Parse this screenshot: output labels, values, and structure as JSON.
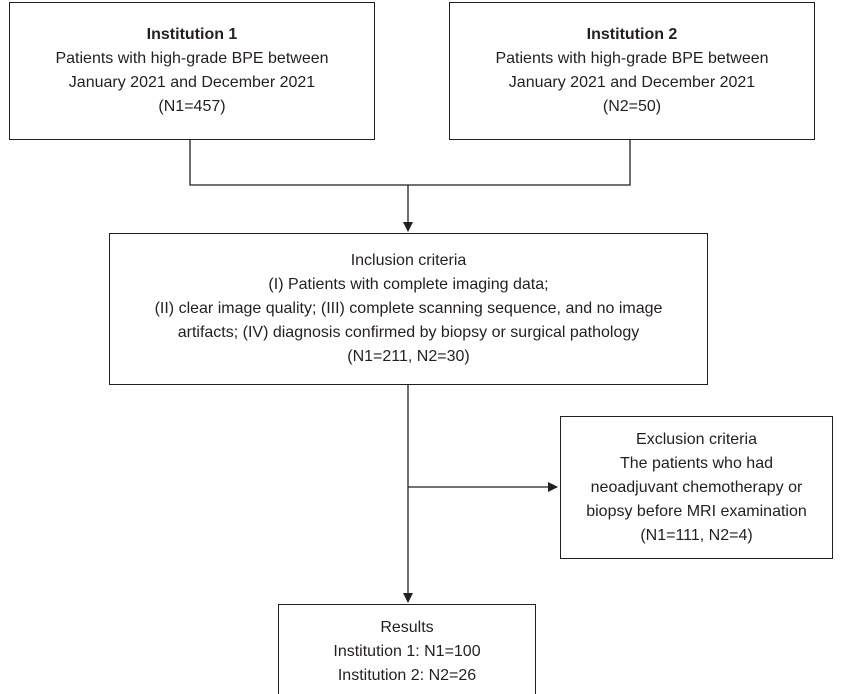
{
  "institution1": {
    "title": "Institution 1",
    "line1": "Patients with high-grade BPE between",
    "line2": "January 2021 and December 2021",
    "count": "(N1=457)"
  },
  "institution2": {
    "title": "Institution 2",
    "line1": "Patients with high-grade BPE between",
    "line2": "January 2021 and December 2021",
    "count": "(N2=50)"
  },
  "inclusion": {
    "title": "Inclusion criteria",
    "line1": "(I) Patients with complete imaging data;",
    "line2": "(II) clear image quality; (III) complete scanning sequence, and no image",
    "line3": "artifacts; (IV) diagnosis confirmed by  biopsy or surgical pathology",
    "count": "(N1=211, N2=30)"
  },
  "exclusion": {
    "title": "Exclusion criteria",
    "line1": "The patients who had",
    "line2": "neoadjuvant chemotherapy or",
    "line3": "biopsy before MRI examination",
    "count": "(N1=111, N2=4)"
  },
  "results": {
    "title": "Results",
    "line1": "Institution 1: N1=100",
    "line2": "Institution 2: N2=26"
  }
}
